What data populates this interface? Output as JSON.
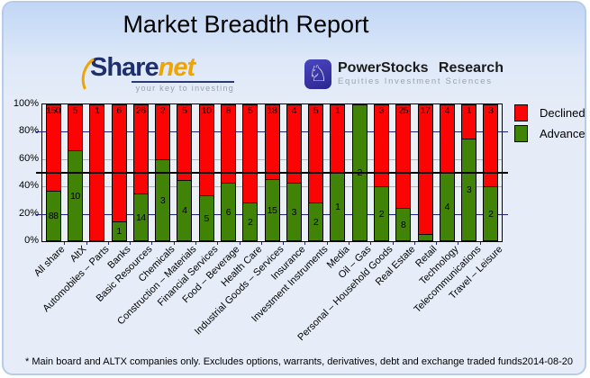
{
  "title": "Market Breadth Report",
  "logos": {
    "sharenet": {
      "name_part1": "Share",
      "name_part2": "net",
      "tagline": "your key to investing"
    },
    "powerstocks": {
      "title": "PowerStocks Research",
      "subtitle": "Equities Investment Sciences",
      "icon": "chess-knight-icon",
      "badge_color": "#2f2b9e"
    }
  },
  "chart_data": {
    "type": "bar",
    "stacked": true,
    "normalized_to_percent": true,
    "y_ticks": [
      "0%",
      "20%",
      "40%",
      "60%",
      "80%",
      "100%"
    ],
    "ylim": [
      0,
      100
    ],
    "reference_line_percent": 50,
    "grid": "on",
    "legend_position": "right",
    "legend": [
      {
        "label": "Declined",
        "color": "#fb0404"
      },
      {
        "label": "Advanced",
        "color": "#418306"
      }
    ],
    "categories": [
      "All share",
      "AltX",
      "Automobiles – Parts",
      "Banks",
      "Basic Resources",
      "Chemicals",
      "Construction – Materials",
      "Financial Services",
      "Food – Beverage",
      "Health Care",
      "Industrial Goods – Services",
      "Insurance",
      "Investment Instruments",
      "Media",
      "Oil – Gas",
      "Personal – Household Goods",
      "Real Estate",
      "Retail",
      "Technology",
      "Telecommunications",
      "Travel – Leisure"
    ],
    "series": [
      {
        "name": "Declined",
        "color": "#fb0404",
        "values": [
          150,
          5,
          1,
          6,
          26,
          2,
          5,
          10,
          8,
          5,
          18,
          4,
          5,
          1,
          0,
          3,
          25,
          17,
          4,
          1,
          3
        ],
        "labels": [
          "150",
          "5",
          "1",
          "6",
          "26",
          "2",
          "5",
          "10",
          "8",
          "5",
          "18",
          "4",
          "5",
          "1",
          "",
          "3",
          "25",
          "17",
          "4",
          "1",
          "3"
        ]
      },
      {
        "name": "Advanced",
        "color": "#418306",
        "values": [
          88,
          10,
          0,
          1,
          14,
          3,
          4,
          5,
          6,
          2,
          15,
          3,
          2,
          1,
          2,
          2,
          8,
          1,
          4,
          3,
          2
        ],
        "labels": [
          "88",
          "10",
          "",
          "1",
          "14",
          "3",
          "4",
          "5",
          "6",
          "2",
          "15",
          "3",
          "2",
          "1",
          "2",
          "2",
          "8",
          "",
          "4",
          "3",
          "2"
        ]
      }
    ]
  },
  "footer": {
    "note": "* Main board and ALTX companies only. Excludes options, warrants, derivatives, debt and exchange traded funds",
    "date": "2014-08-20"
  }
}
